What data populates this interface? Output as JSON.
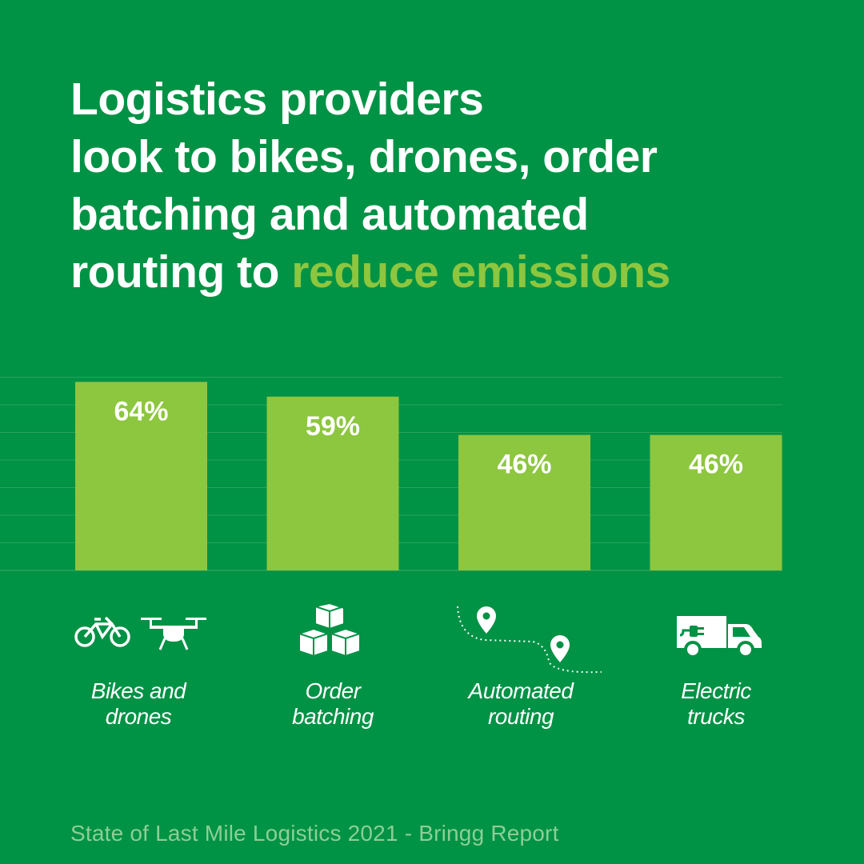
{
  "title": {
    "lines": [
      "Logistics providers",
      "look to bikes, drones, order",
      "batching and automated"
    ],
    "last_line_prefix": "routing to ",
    "highlight": "reduce emissions"
  },
  "colors": {
    "background": "#009245",
    "bar": "#8dc63f",
    "highlight": "#8dc63f",
    "text": "#ffffff",
    "gridline": "#2aa35a",
    "source_text": "#8ccf96"
  },
  "chart_data": {
    "type": "bar",
    "categories": [
      "Bikes and drones",
      "Order batching",
      "Automated routing",
      "Electric trucks"
    ],
    "values": [
      64,
      59,
      46,
      46
    ],
    "value_labels": [
      "64%",
      "59%",
      "46%",
      "46%"
    ],
    "ylim": [
      0,
      66
    ],
    "grid": true,
    "title": "",
    "xlabel": "",
    "ylabel": ""
  },
  "categories": [
    {
      "line1": "Bikes and",
      "line2": "drones",
      "icons": [
        "bicycle-icon",
        "drone-icon"
      ]
    },
    {
      "line1": "Order",
      "line2": "batching",
      "icons": [
        "boxes-icon"
      ]
    },
    {
      "line1": "Automated",
      "line2": "routing",
      "icons": [
        "route-pins-icon"
      ]
    },
    {
      "line1": "Electric",
      "line2": "trucks",
      "icons": [
        "electric-truck-icon"
      ]
    }
  ],
  "source": "State of Last Mile Logistics 2021 - Bringg Report"
}
